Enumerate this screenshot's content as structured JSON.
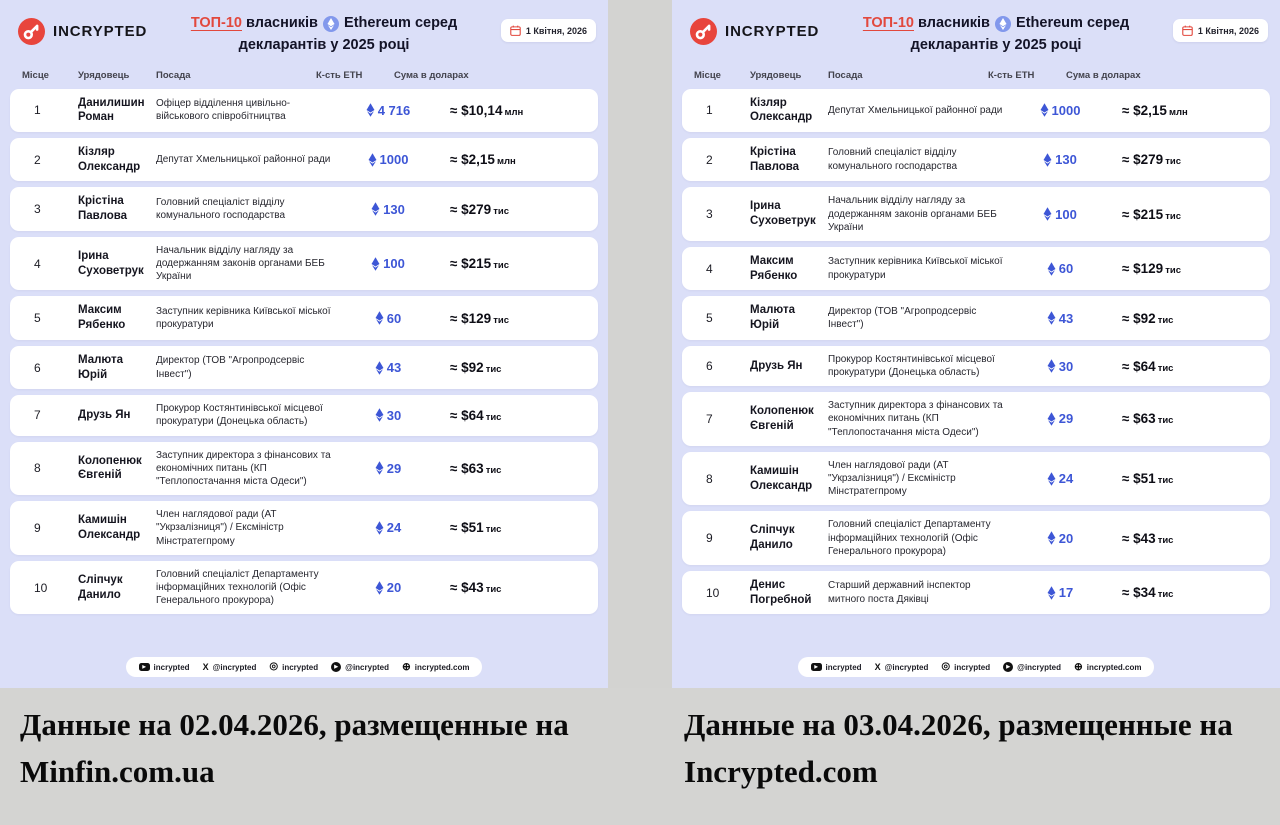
{
  "header": {
    "brand": "INCRYPTED",
    "title": {
      "highlight": "ТОП-10",
      "after_highlight": "власників",
      "eth_word": "Ethereum серед",
      "line2": "декларантів у 2025 році"
    },
    "date": "1 Квітня, 2026",
    "accent_red": "#e2483d",
    "eth_blue": "#3d56d6",
    "panel_bg": "#dbdff8"
  },
  "footer": {
    "social": [
      {
        "icon": "youtube-icon",
        "label": "incrypted"
      },
      {
        "icon": "x-icon",
        "label": "@incrypted"
      },
      {
        "icon": "instagram-icon",
        "label": "incrypted"
      },
      {
        "icon": "telegram-icon",
        "label": "@incrypted"
      },
      {
        "icon": "globe-icon",
        "label": "incrypted.com"
      }
    ]
  },
  "chart_data": [
    {
      "type": "table",
      "title": "ТОП-10 власників Ethereum серед декларантів у 2025 році",
      "date": "1 Квітня, 2026",
      "caption": "Данные на 02.04.2026, размещенные на Minfin.com.ua",
      "columns": [
        "Місце",
        "Урядовець",
        "Посада",
        "К-сть ETH",
        "Сума в доларах"
      ],
      "rows": [
        {
          "place": "1",
          "name": "Данилишин Роман",
          "position": "Офіцер відділення цивільно-військового співробітництва",
          "eth": "4 716",
          "usd": "≈ $10,14",
          "usd_unit": "млн"
        },
        {
          "place": "2",
          "name": "Кізляр Олександр",
          "position": "Депутат Хмельницької районної ради",
          "eth": "1000",
          "usd": "≈ $2,15",
          "usd_unit": "млн"
        },
        {
          "place": "3",
          "name": "Крістіна Павлова",
          "position": "Головний спеціаліст відділу комунального господарства",
          "eth": "130",
          "usd": "≈ $279",
          "usd_unit": "тис"
        },
        {
          "place": "4",
          "name": "Ірина Суховетрук",
          "position": "Начальник відділу нагляду за додержанням законів органами БЕБ України",
          "eth": "100",
          "usd": "≈ $215",
          "usd_unit": "тис"
        },
        {
          "place": "5",
          "name": "Максим Рябенко",
          "position": "Заступник керівника Київської міської прокуратури",
          "eth": "60",
          "usd": "≈ $129",
          "usd_unit": "тис"
        },
        {
          "place": "6",
          "name": "Малюта Юрій",
          "position": "Директор (ТОВ \"Агропродсервіс Інвест\")",
          "eth": "43",
          "usd": "≈ $92",
          "usd_unit": "тис"
        },
        {
          "place": "7",
          "name": "Друзь Ян",
          "position": "Прокурор Костянтинівської місцевої прокуратури (Донецька область)",
          "eth": "30",
          "usd": "≈ $64",
          "usd_unit": "тис"
        },
        {
          "place": "8",
          "name": "Колопенюк Євгеній",
          "position": "Заступник директора з фінансових та економічних питань (КП \"Теплопостачання міста Одеси\")",
          "eth": "29",
          "usd": "≈ $63",
          "usd_unit": "тис"
        },
        {
          "place": "9",
          "name": "Камишін Олександр",
          "position": "Член наглядової ради (АТ \"Укрзалізниця\") / Ексміністр Мінстратегпрому",
          "eth": "24",
          "usd": "≈ $51",
          "usd_unit": "тис"
        },
        {
          "place": "10",
          "name": "Сліпчук Данило",
          "position": "Головний спеціаліст Департаменту інформаційних технологій (Офіс Генерального прокурора)",
          "eth": "20",
          "usd": "≈ $43",
          "usd_unit": "тис"
        }
      ]
    },
    {
      "type": "table",
      "title": "ТОП-10 власників Ethereum серед декларантів у 2025 році",
      "date": "1 Квітня, 2026",
      "caption": "Данные на 03.04.2026, размещенные на Incrypted.com",
      "columns": [
        "Місце",
        "Урядовець",
        "Посада",
        "К-сть ETH",
        "Сума в доларах"
      ],
      "rows": [
        {
          "place": "1",
          "name": "Кізляр Олександр",
          "position": "Депутат Хмельницької районної ради",
          "eth": "1000",
          "usd": "≈ $2,15",
          "usd_unit": "млн"
        },
        {
          "place": "2",
          "name": "Крістіна Павлова",
          "position": "Головний спеціаліст відділу комунального господарства",
          "eth": "130",
          "usd": "≈ $279",
          "usd_unit": "тис"
        },
        {
          "place": "3",
          "name": "Ірина Суховетрук",
          "position": "Начальник відділу нагляду за додержанням законів органами БЕБ України",
          "eth": "100",
          "usd": "≈ $215",
          "usd_unit": "тис"
        },
        {
          "place": "4",
          "name": "Максим Рябенко",
          "position": "Заступник керівника Київської міської прокуратури",
          "eth": "60",
          "usd": "≈ $129",
          "usd_unit": "тис"
        },
        {
          "place": "5",
          "name": "Малюта Юрій",
          "position": "Директор (ТОВ \"Агропродсервіс Інвест\")",
          "eth": "43",
          "usd": "≈ $92",
          "usd_unit": "тис"
        },
        {
          "place": "6",
          "name": "Друзь Ян",
          "position": "Прокурор Костянтинівської місцевої прокуратури (Донецька область)",
          "eth": "30",
          "usd": "≈ $64",
          "usd_unit": "тис"
        },
        {
          "place": "7",
          "name": "Колопенюк Євгеній",
          "position": "Заступник директора з фінансових та економічних питань (КП \"Теплопостачання міста Одеси\")",
          "eth": "29",
          "usd": "≈ $63",
          "usd_unit": "тис"
        },
        {
          "place": "8",
          "name": "Камишін Олександр",
          "position": "Член наглядової ради (АТ \"Укрзалізниця\") / Ексміністр Мінстратегпрому",
          "eth": "24",
          "usd": "≈ $51",
          "usd_unit": "тис"
        },
        {
          "place": "9",
          "name": "Сліпчук Данило",
          "position": "Головний спеціаліст Департаменту інформаційних технологій (Офіс Генерального прокурора)",
          "eth": "20",
          "usd": "≈ $43",
          "usd_unit": "тис"
        },
        {
          "place": "10",
          "name": "Денис Погребной",
          "position": "Старший державний інспектор митного поста Дяківці",
          "eth": "17",
          "usd": "≈ $34",
          "usd_unit": "тис"
        }
      ]
    }
  ]
}
